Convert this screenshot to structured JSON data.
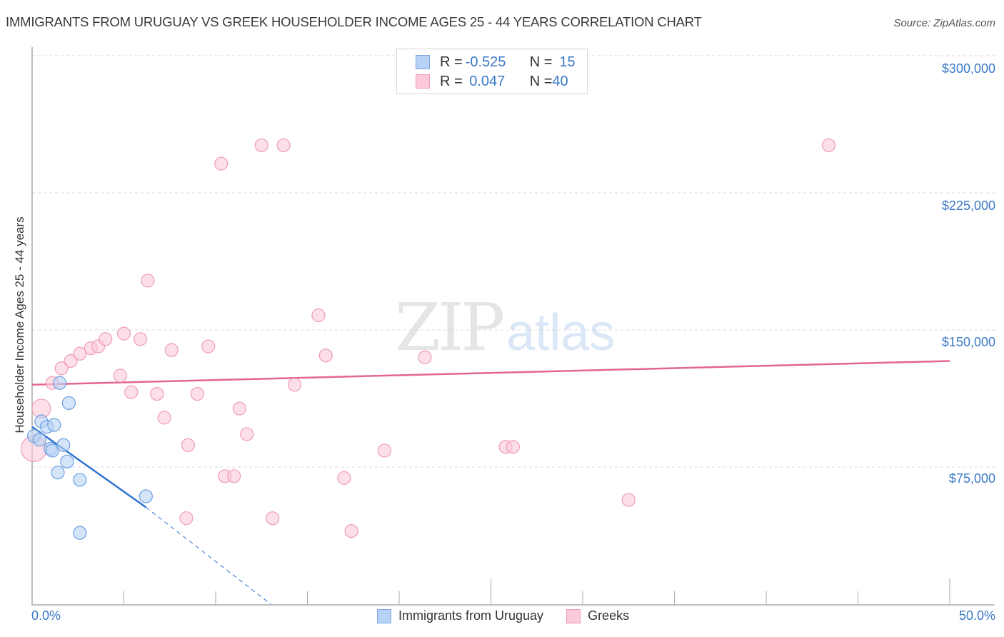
{
  "header": {
    "title": "IMMIGRANTS FROM URUGUAY VS GREEK HOUSEHOLDER INCOME AGES 25 - 44 YEARS CORRELATION CHART",
    "source": "Source: ZipAtlas.com"
  },
  "watermark": {
    "zip": "ZIP",
    "atlas": "atlas"
  },
  "axes": {
    "ylabel": "Householder Income Ages 25 - 44 years",
    "yticks": [
      "$300,000",
      "$225,000",
      "$150,000",
      "$75,000"
    ],
    "xticks": {
      "left": "0.0%",
      "right": "50.0%"
    }
  },
  "legend_top": {
    "rows": [
      {
        "r_label": "R = ",
        "r_value": "-0.525",
        "n_label": "N = ",
        "n_value": "15"
      },
      {
        "r_label": "R = ",
        "r_value": " 0.047",
        "n_label": "N = ",
        "n_value": "40"
      }
    ]
  },
  "legend_bottom": {
    "items": [
      {
        "label": "Immigrants from Uruguay",
        "color": "#b8d2f5"
      },
      {
        "label": "Greeks",
        "color": "#fbc9d8"
      }
    ]
  },
  "colors": {
    "uruguay_fill": "#b8d2f5",
    "uruguay_stroke": "#6b9fe0",
    "uruguay_line": "#2f74d0",
    "greeks_fill": "#fbc9d8",
    "greeks_stroke": "#ee9cb6",
    "greeks_line": "#e3668e",
    "tick_text": "#3a78c8"
  },
  "chart_data": {
    "type": "scatter",
    "title": "IMMIGRANTS FROM URUGUAY VS GREEK HOUSEHOLDER INCOME AGES 25 - 44 YEARS CORRELATION CHART",
    "xlabel": "",
    "ylabel": "Householder Income Ages 25 - 44 years",
    "xlim": [
      0,
      50
    ],
    "ylim": [
      0,
      312000
    ],
    "x_unit": "%",
    "y_ticks": [
      75000,
      150000,
      225000,
      300000
    ],
    "grid": true,
    "legend_position": "bottom",
    "series": [
      {
        "name": "Immigrants from Uruguay",
        "R": -0.525,
        "N": 15,
        "points": [
          [
            0.1,
            92000
          ],
          [
            0.4,
            90000
          ],
          [
            0.5,
            100000
          ],
          [
            0.8,
            97000
          ],
          [
            1.0,
            85000
          ],
          [
            1.1,
            84000
          ],
          [
            1.2,
            98000
          ],
          [
            1.4,
            72000
          ],
          [
            1.5,
            121000
          ],
          [
            1.7,
            87000
          ],
          [
            1.9,
            78000
          ],
          [
            2.0,
            110000
          ],
          [
            2.6,
            68000
          ],
          [
            2.6,
            39000
          ],
          [
            6.2,
            59000
          ]
        ],
        "trend": {
          "x": [
            0,
            6.2
          ],
          "y": [
            97000,
            53000
          ],
          "dashed_extension_to": [
            13.0,
            0
          ]
        }
      },
      {
        "name": "Greeks",
        "R": 0.047,
        "N": 40,
        "points": [
          [
            0.1,
            85000
          ],
          [
            0.5,
            107000
          ],
          [
            1.1,
            121000
          ],
          [
            1.6,
            129000
          ],
          [
            2.1,
            133000
          ],
          [
            2.6,
            137000
          ],
          [
            3.2,
            140000
          ],
          [
            3.6,
            141000
          ],
          [
            4.0,
            145000
          ],
          [
            4.8,
            125000
          ],
          [
            5.0,
            148000
          ],
          [
            5.4,
            116000
          ],
          [
            5.9,
            145000
          ],
          [
            6.3,
            177000
          ],
          [
            6.8,
            115000
          ],
          [
            7.2,
            102000
          ],
          [
            7.6,
            139000
          ],
          [
            8.5,
            87000
          ],
          [
            9.0,
            115000
          ],
          [
            9.6,
            141000
          ],
          [
            10.3,
            241000
          ],
          [
            10.5,
            70000
          ],
          [
            11.0,
            70000
          ],
          [
            11.3,
            107000
          ],
          [
            11.7,
            93000
          ],
          [
            12.5,
            251000
          ],
          [
            13.1,
            47000
          ],
          [
            13.7,
            251000
          ],
          [
            14.3,
            120000
          ],
          [
            15.6,
            158000
          ],
          [
            16.0,
            136000
          ],
          [
            17.0,
            69000
          ],
          [
            17.4,
            40000
          ],
          [
            19.2,
            84000
          ],
          [
            21.4,
            135000
          ],
          [
            8.4,
            47000
          ],
          [
            25.8,
            86000
          ],
          [
            26.2,
            86000
          ],
          [
            32.5,
            57000
          ],
          [
            43.4,
            251000
          ]
        ],
        "trend": {
          "x": [
            0,
            50
          ],
          "y": [
            120000,
            133000
          ]
        }
      }
    ]
  }
}
